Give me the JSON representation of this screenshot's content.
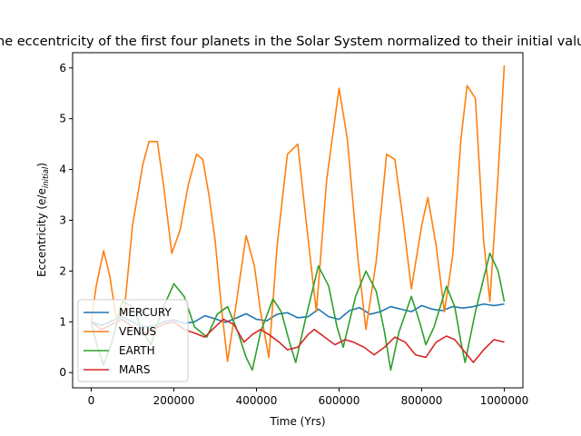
{
  "chart_data": {
    "type": "line",
    "title": "The eccentricity of the first four planets in the Solar System normalized to their initial values",
    "xlabel": "Time (Yrs)",
    "ylabel_main": "Eccentricity (e/e",
    "ylabel_sub": "initial",
    "ylabel_close": ")",
    "xlim": [
      -45000,
      1045000
    ],
    "ylim": [
      -0.3,
      6.3
    ],
    "xticks": [
      0,
      200000,
      400000,
      600000,
      800000,
      1000000
    ],
    "xtick_labels": [
      "0",
      "200000",
      "400000",
      "600000",
      "800000",
      "1000000"
    ],
    "yticks": [
      0,
      1,
      2,
      3,
      4,
      5,
      6
    ],
    "ytick_labels": [
      "0",
      "1",
      "2",
      "3",
      "4",
      "5",
      "6"
    ],
    "grid": false,
    "legend_position": "lower-left",
    "series": [
      {
        "name": "MERCURY",
        "color": "#1f77b4",
        "points": [
          [
            0,
            1.0
          ],
          [
            25000,
            0.93
          ],
          [
            50000,
            1.02
          ],
          [
            75000,
            1.1
          ],
          [
            100000,
            1.0
          ],
          [
            125000,
            0.9
          ],
          [
            150000,
            0.92
          ],
          [
            175000,
            1.0
          ],
          [
            200000,
            1.04
          ],
          [
            225000,
            0.97
          ],
          [
            250000,
            1.0
          ],
          [
            275000,
            1.12
          ],
          [
            300000,
            1.06
          ],
          [
            325000,
            0.99
          ],
          [
            350000,
            1.07
          ],
          [
            375000,
            1.16
          ],
          [
            400000,
            1.05
          ],
          [
            425000,
            1.02
          ],
          [
            450000,
            1.15
          ],
          [
            475000,
            1.18
          ],
          [
            500000,
            1.08
          ],
          [
            525000,
            1.1
          ],
          [
            550000,
            1.25
          ],
          [
            575000,
            1.1
          ],
          [
            600000,
            1.05
          ],
          [
            625000,
            1.22
          ],
          [
            650000,
            1.28
          ],
          [
            675000,
            1.15
          ],
          [
            700000,
            1.2
          ],
          [
            725000,
            1.3
          ],
          [
            750000,
            1.25
          ],
          [
            775000,
            1.2
          ],
          [
            800000,
            1.32
          ],
          [
            825000,
            1.25
          ],
          [
            850000,
            1.22
          ],
          [
            875000,
            1.3
          ],
          [
            900000,
            1.27
          ],
          [
            925000,
            1.3
          ],
          [
            950000,
            1.35
          ],
          [
            975000,
            1.32
          ],
          [
            1000000,
            1.35
          ]
        ]
      },
      {
        "name": "VENUS",
        "color": "#ff7f0e",
        "points": [
          [
            0,
            1.0
          ],
          [
            12000,
            1.7
          ],
          [
            30000,
            2.4
          ],
          [
            45000,
            1.9
          ],
          [
            60000,
            1.1
          ],
          [
            80000,
            1.2
          ],
          [
            100000,
            2.9
          ],
          [
            125000,
            4.1
          ],
          [
            140000,
            4.55
          ],
          [
            160000,
            4.55
          ],
          [
            175000,
            3.7
          ],
          [
            195000,
            2.35
          ],
          [
            215000,
            2.8
          ],
          [
            235000,
            3.7
          ],
          [
            255000,
            4.3
          ],
          [
            270000,
            4.2
          ],
          [
            285000,
            3.5
          ],
          [
            300000,
            2.6
          ],
          [
            315000,
            1.3
          ],
          [
            330000,
            0.22
          ],
          [
            350000,
            1.3
          ],
          [
            375000,
            2.7
          ],
          [
            395000,
            2.1
          ],
          [
            410000,
            1.2
          ],
          [
            430000,
            0.3
          ],
          [
            450000,
            2.5
          ],
          [
            475000,
            4.3
          ],
          [
            500000,
            4.5
          ],
          [
            520000,
            3.0
          ],
          [
            545000,
            1.2
          ],
          [
            570000,
            3.8
          ],
          [
            600000,
            5.6
          ],
          [
            620000,
            4.6
          ],
          [
            645000,
            2.3
          ],
          [
            665000,
            0.85
          ],
          [
            690000,
            2.2
          ],
          [
            715000,
            4.3
          ],
          [
            735000,
            4.2
          ],
          [
            755000,
            3.0
          ],
          [
            775000,
            1.65
          ],
          [
            800000,
            2.9
          ],
          [
            815000,
            3.45
          ],
          [
            835000,
            2.5
          ],
          [
            855000,
            1.2
          ],
          [
            875000,
            2.3
          ],
          [
            895000,
            4.6
          ],
          [
            910000,
            5.65
          ],
          [
            930000,
            5.4
          ],
          [
            950000,
            2.6
          ],
          [
            965000,
            1.4
          ],
          [
            985000,
            3.9
          ],
          [
            1000000,
            6.05
          ]
        ]
      },
      {
        "name": "EARTH",
        "color": "#2ca02c",
        "points": [
          [
            0,
            1.0
          ],
          [
            15000,
            0.5
          ],
          [
            30000,
            0.15
          ],
          [
            50000,
            0.6
          ],
          [
            75000,
            1.4
          ],
          [
            100000,
            1.3
          ],
          [
            125000,
            0.8
          ],
          [
            145000,
            0.55
          ],
          [
            170000,
            1.2
          ],
          [
            200000,
            1.75
          ],
          [
            225000,
            1.5
          ],
          [
            250000,
            0.9
          ],
          [
            280000,
            0.7
          ],
          [
            305000,
            1.15
          ],
          [
            330000,
            1.3
          ],
          [
            355000,
            0.8
          ],
          [
            375000,
            0.3
          ],
          [
            390000,
            0.05
          ],
          [
            410000,
            0.8
          ],
          [
            440000,
            1.45
          ],
          [
            460000,
            1.2
          ],
          [
            480000,
            0.6
          ],
          [
            495000,
            0.2
          ],
          [
            520000,
            1.1
          ],
          [
            550000,
            2.1
          ],
          [
            575000,
            1.7
          ],
          [
            595000,
            0.9
          ],
          [
            610000,
            0.5
          ],
          [
            640000,
            1.5
          ],
          [
            665000,
            2.0
          ],
          [
            690000,
            1.6
          ],
          [
            710000,
            0.8
          ],
          [
            725000,
            0.05
          ],
          [
            745000,
            0.8
          ],
          [
            775000,
            1.5
          ],
          [
            795000,
            1.0
          ],
          [
            810000,
            0.55
          ],
          [
            830000,
            0.9
          ],
          [
            860000,
            1.7
          ],
          [
            880000,
            1.3
          ],
          [
            895000,
            0.6
          ],
          [
            905000,
            0.2
          ],
          [
            930000,
            1.2
          ],
          [
            965000,
            2.35
          ],
          [
            985000,
            2.0
          ],
          [
            1000000,
            1.4
          ]
        ]
      },
      {
        "name": "MARS",
        "color": "#d62728",
        "points": [
          [
            0,
            1.0
          ],
          [
            25000,
            0.85
          ],
          [
            50000,
            0.95
          ],
          [
            75000,
            1.05
          ],
          [
            100000,
            0.9
          ],
          [
            125000,
            0.75
          ],
          [
            150000,
            0.85
          ],
          [
            175000,
            0.95
          ],
          [
            200000,
            1.0
          ],
          [
            225000,
            0.85
          ],
          [
            250000,
            0.78
          ],
          [
            275000,
            0.7
          ],
          [
            300000,
            0.9
          ],
          [
            320000,
            1.05
          ],
          [
            345000,
            0.95
          ],
          [
            370000,
            0.6
          ],
          [
            390000,
            0.75
          ],
          [
            410000,
            0.85
          ],
          [
            430000,
            0.75
          ],
          [
            455000,
            0.6
          ],
          [
            475000,
            0.45
          ],
          [
            500000,
            0.5
          ],
          [
            525000,
            0.75
          ],
          [
            540000,
            0.85
          ],
          [
            565000,
            0.7
          ],
          [
            590000,
            0.55
          ],
          [
            615000,
            0.65
          ],
          [
            635000,
            0.6
          ],
          [
            660000,
            0.5
          ],
          [
            685000,
            0.35
          ],
          [
            710000,
            0.5
          ],
          [
            735000,
            0.7
          ],
          [
            760000,
            0.6
          ],
          [
            785000,
            0.35
          ],
          [
            810000,
            0.3
          ],
          [
            835000,
            0.6
          ],
          [
            860000,
            0.72
          ],
          [
            880000,
            0.65
          ],
          [
            905000,
            0.4
          ],
          [
            925000,
            0.2
          ],
          [
            950000,
            0.45
          ],
          [
            975000,
            0.65
          ],
          [
            1000000,
            0.6
          ]
        ]
      }
    ]
  }
}
